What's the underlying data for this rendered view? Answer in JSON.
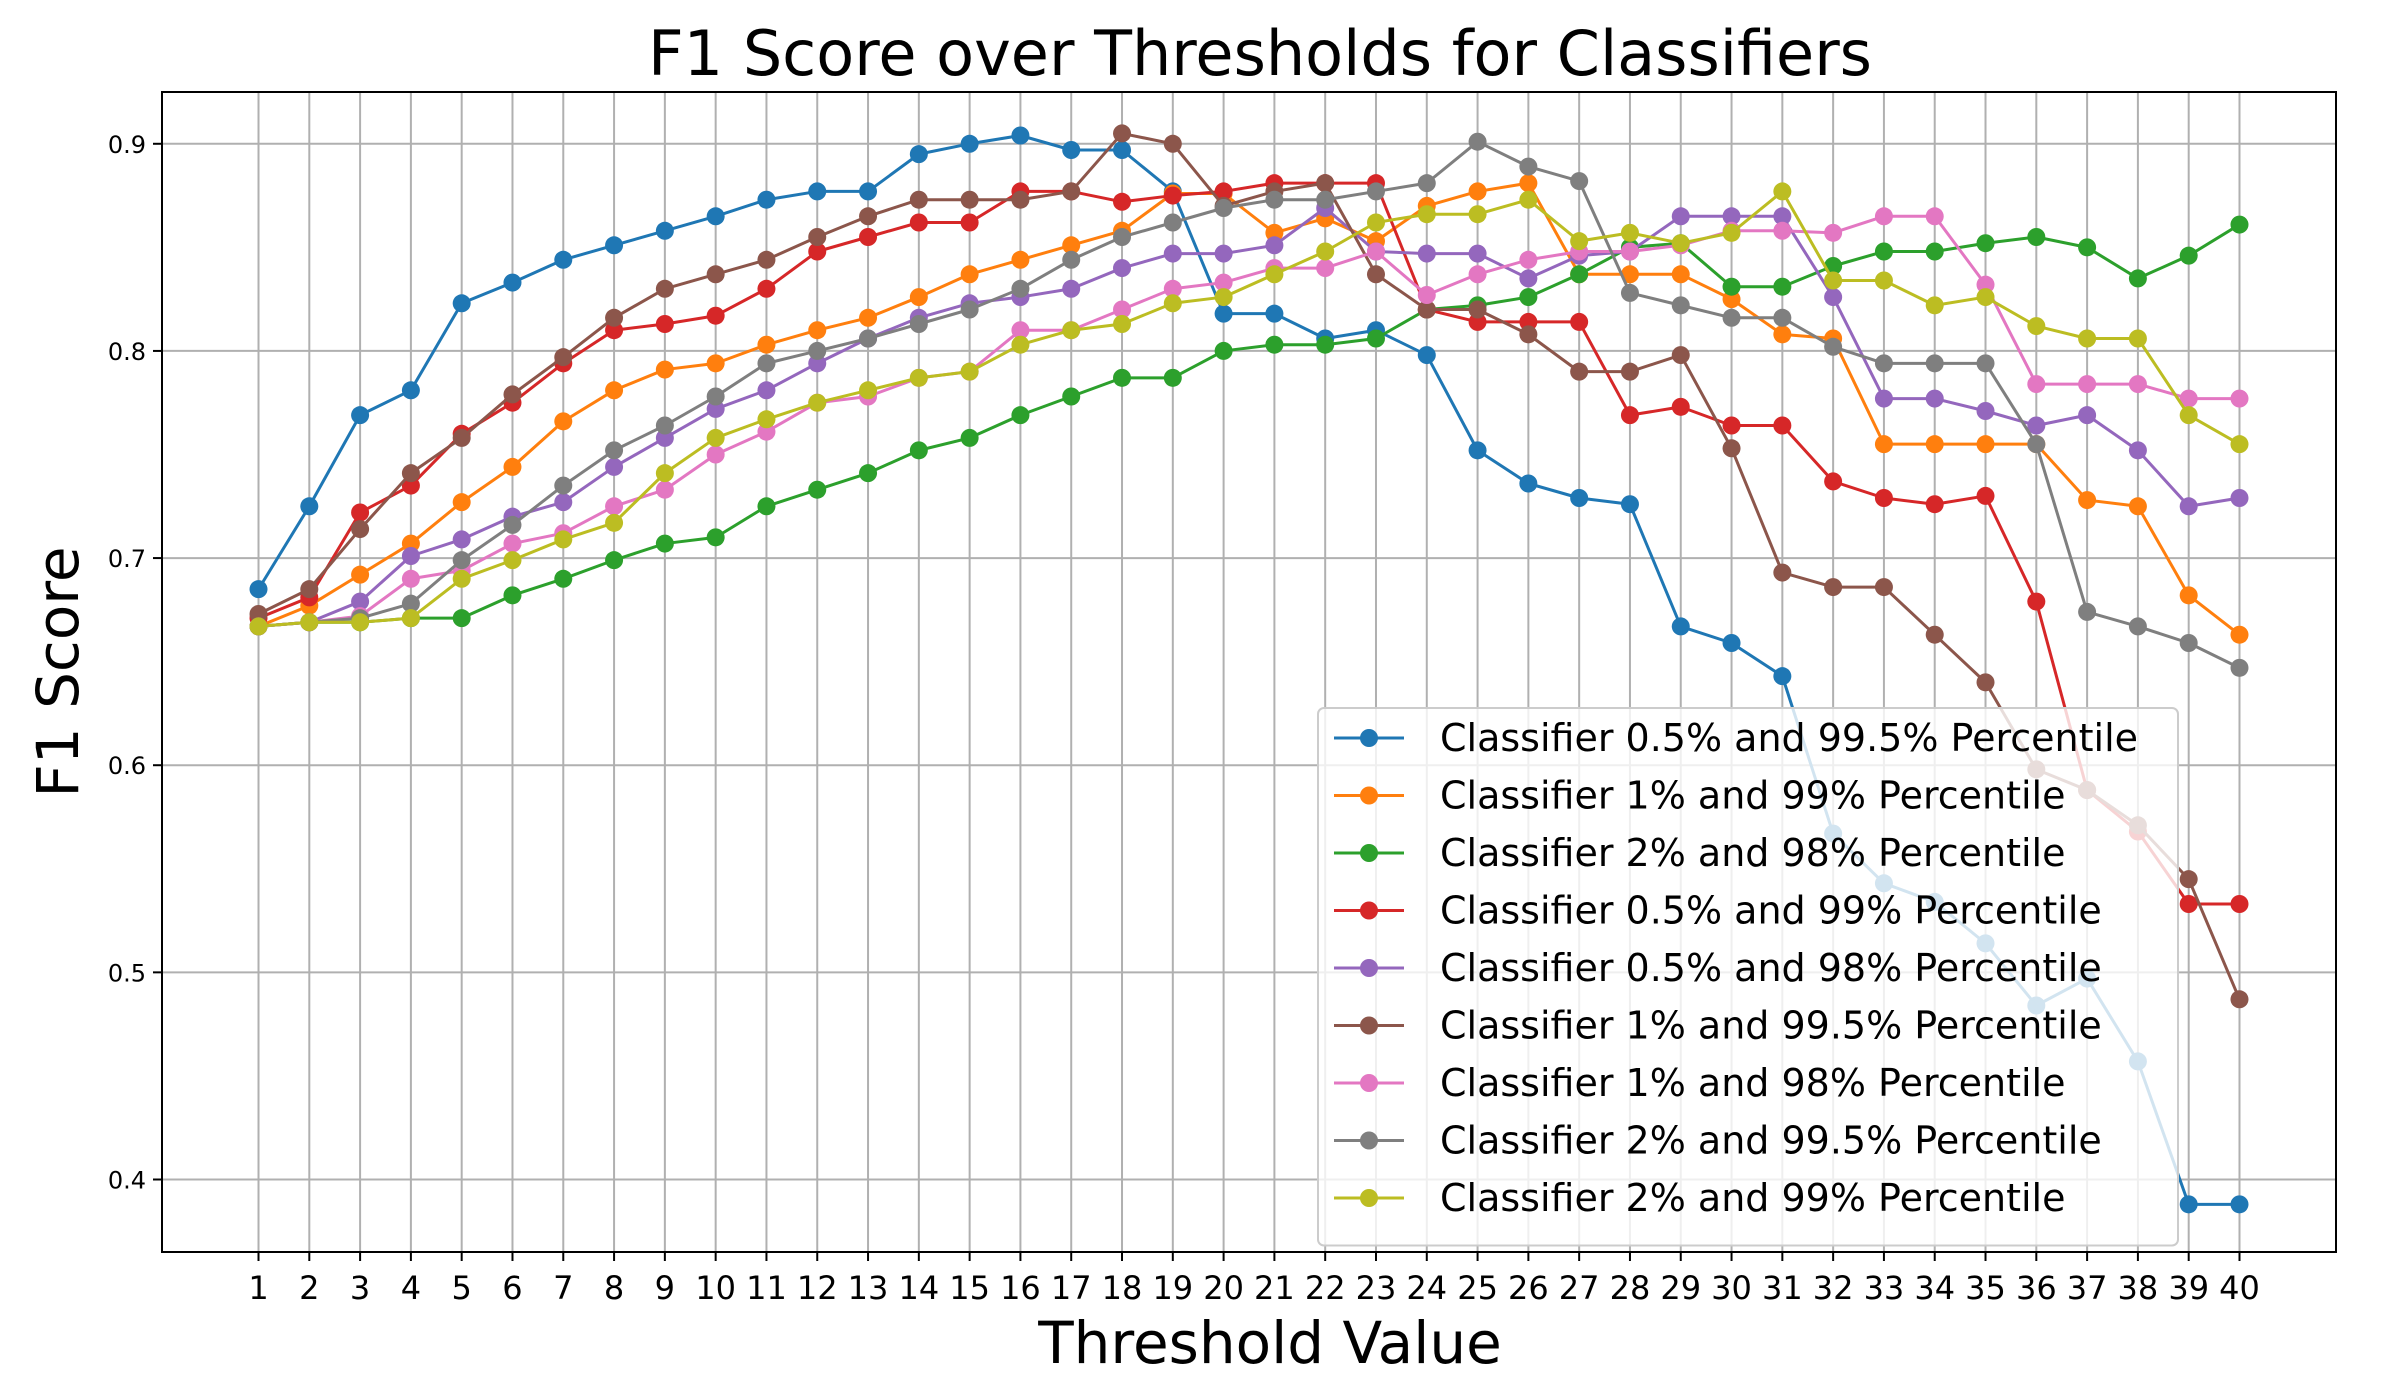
{
  "chart_data": {
    "type": "line",
    "title": "F1 Score over Thresholds for Classifiers",
    "xlabel": "Threshold Value",
    "ylabel": "F1 Score",
    "x": [
      1,
      2,
      3,
      4,
      5,
      6,
      7,
      8,
      9,
      10,
      11,
      12,
      13,
      14,
      15,
      16,
      17,
      18,
      19,
      20,
      21,
      22,
      23,
      24,
      25,
      26,
      27,
      28,
      29,
      30,
      31,
      32,
      33,
      34,
      35,
      36,
      37,
      38,
      39,
      40
    ],
    "xlim": [
      -0.9,
      41.9
    ],
    "ylim": [
      0.365,
      0.925
    ],
    "yticks": [
      0.4,
      0.5,
      0.6,
      0.7,
      0.8,
      0.9
    ],
    "ytick_labels": [
      "0.4",
      "0.5",
      "0.6",
      "0.7",
      "0.8",
      "0.9"
    ],
    "grid": true,
    "legend_position": "lower-right",
    "series": [
      {
        "name": "Classifier 0.5% and 99.5% Percentile",
        "color": "#1f77b4",
        "values": [
          0.685,
          0.725,
          0.769,
          0.781,
          0.823,
          0.833,
          0.844,
          0.851,
          0.858,
          0.865,
          0.873,
          0.877,
          0.877,
          0.895,
          0.9,
          0.904,
          0.897,
          0.897,
          0.877,
          0.818,
          0.818,
          0.806,
          0.81,
          0.798,
          0.752,
          0.736,
          0.729,
          0.726,
          0.667,
          0.659,
          0.643,
          0.567,
          0.543,
          0.534,
          0.514,
          0.484,
          0.497,
          0.457,
          0.388,
          0.388
        ]
      },
      {
        "name": "Classifier 1% and 99% Percentile",
        "color": "#ff7f0e",
        "values": [
          0.667,
          0.677,
          0.692,
          0.707,
          0.727,
          0.744,
          0.766,
          0.781,
          0.791,
          0.794,
          0.803,
          0.81,
          0.816,
          0.826,
          0.837,
          0.844,
          0.851,
          0.858,
          0.876,
          0.876,
          0.857,
          0.864,
          0.853,
          0.87,
          0.877,
          0.881,
          0.837,
          0.837,
          0.837,
          0.825,
          0.808,
          0.806,
          0.755,
          0.755,
          0.755,
          0.755,
          0.728,
          0.725,
          0.682,
          0.663
        ]
      },
      {
        "name": "Classifier 2% and 98% Percentile",
        "color": "#2ca02c",
        "values": [
          0.667,
          0.669,
          0.669,
          0.671,
          0.671,
          0.682,
          0.69,
          0.699,
          0.707,
          0.71,
          0.725,
          0.733,
          0.741,
          0.752,
          0.758,
          0.769,
          0.778,
          0.787,
          0.787,
          0.8,
          0.803,
          0.803,
          0.806,
          0.82,
          0.822,
          0.826,
          0.837,
          0.85,
          0.852,
          0.831,
          0.831,
          0.841,
          0.848,
          0.848,
          0.852,
          0.855,
          0.85,
          0.835,
          0.846,
          0.861
        ]
      },
      {
        "name": "Classifier 0.5% and 99% Percentile",
        "color": "#d62728",
        "values": [
          0.671,
          0.681,
          0.722,
          0.735,
          0.76,
          0.775,
          0.794,
          0.81,
          0.813,
          0.817,
          0.83,
          0.848,
          0.855,
          0.862,
          0.862,
          0.877,
          0.877,
          0.872,
          0.875,
          0.877,
          0.881,
          0.881,
          0.881,
          0.82,
          0.814,
          0.814,
          0.814,
          0.769,
          0.773,
          0.764,
          0.764,
          0.737,
          0.729,
          0.726,
          0.73,
          0.679,
          0.588,
          0.568,
          0.533,
          0.533
        ]
      },
      {
        "name": "Classifier 0.5% and 98% Percentile",
        "color": "#9467bd",
        "values": [
          0.667,
          0.669,
          0.679,
          0.701,
          0.709,
          0.72,
          0.727,
          0.744,
          0.758,
          0.772,
          0.781,
          0.794,
          0.806,
          0.816,
          0.823,
          0.826,
          0.83,
          0.84,
          0.847,
          0.847,
          0.851,
          0.869,
          0.848,
          0.847,
          0.847,
          0.835,
          0.846,
          0.848,
          0.865,
          0.865,
          0.865,
          0.826,
          0.777,
          0.777,
          0.771,
          0.764,
          0.769,
          0.752,
          0.725,
          0.729
        ]
      },
      {
        "name": "Classifier 1% and 99.5% Percentile",
        "color": "#8c564b",
        "values": [
          0.673,
          0.685,
          0.714,
          0.741,
          0.758,
          0.779,
          0.797,
          0.816,
          0.83,
          0.837,
          0.844,
          0.855,
          0.865,
          0.873,
          0.873,
          0.873,
          0.877,
          0.905,
          0.9,
          0.87,
          0.877,
          0.881,
          0.837,
          0.82,
          0.82,
          0.808,
          0.79,
          0.79,
          0.798,
          0.753,
          0.693,
          0.686,
          0.686,
          0.663,
          0.64,
          0.598,
          0.588,
          0.571,
          0.545,
          0.487
        ]
      },
      {
        "name": "Classifier 1% and 98% Percentile",
        "color": "#e377c2",
        "values": [
          0.667,
          0.669,
          0.672,
          0.69,
          0.694,
          0.707,
          0.712,
          0.725,
          0.733,
          0.75,
          0.761,
          0.775,
          0.778,
          0.787,
          0.79,
          0.81,
          0.81,
          0.82,
          0.83,
          0.833,
          0.84,
          0.84,
          0.848,
          0.827,
          0.837,
          0.844,
          0.848,
          0.848,
          0.851,
          0.858,
          0.858,
          0.857,
          0.865,
          0.865,
          0.832,
          0.784,
          0.784,
          0.784,
          0.777,
          0.777
        ]
      },
      {
        "name": "Classifier 2% and 99.5% Percentile",
        "color": "#7f7f7f",
        "values": [
          0.667,
          0.669,
          0.671,
          0.678,
          0.699,
          0.716,
          0.735,
          0.752,
          0.764,
          0.778,
          0.794,
          0.8,
          0.806,
          0.813,
          0.82,
          0.83,
          0.844,
          0.855,
          0.862,
          0.869,
          0.873,
          0.873,
          0.877,
          0.881,
          0.901,
          0.889,
          0.882,
          0.828,
          0.822,
          0.816,
          0.816,
          0.802,
          0.794,
          0.794,
          0.794,
          0.755,
          0.674,
          0.667,
          0.659,
          0.647
        ]
      },
      {
        "name": "Classifier 2% and 99% Percentile",
        "color": "#bcbd22",
        "values": [
          0.667,
          0.669,
          0.669,
          0.671,
          0.69,
          0.699,
          0.709,
          0.717,
          0.741,
          0.758,
          0.767,
          0.775,
          0.781,
          0.787,
          0.79,
          0.803,
          0.81,
          0.813,
          0.823,
          0.826,
          0.837,
          0.848,
          0.862,
          0.866,
          0.866,
          0.873,
          0.853,
          0.857,
          0.852,
          0.857,
          0.877,
          0.834,
          0.834,
          0.822,
          0.826,
          0.812,
          0.806,
          0.806,
          0.769,
          0.755
        ]
      }
    ]
  }
}
